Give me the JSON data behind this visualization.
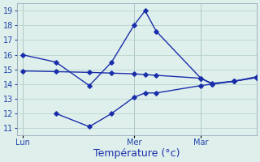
{
  "bg_color": "#dff0ec",
  "grid_color": "#b8d4ce",
  "line_color": "#1a2eaa",
  "xlabel": "Température (°c)",
  "xlabel_fontsize": 9,
  "ylim": [
    10.5,
    19.5
  ],
  "yticks": [
    11,
    12,
    13,
    14,
    15,
    16,
    17,
    18,
    19
  ],
  "day_labels": [
    "Lun",
    "Mer",
    "Mar"
  ],
  "day_positions": [
    0,
    10,
    16
  ],
  "xlim": [
    -0.5,
    21
  ],
  "vline_positions": [
    0,
    10,
    16
  ],
  "series_max_x": [
    0,
    3,
    6,
    8,
    10,
    11,
    12,
    16,
    17,
    19,
    21
  ],
  "series_max_y": [
    16.0,
    15.5,
    13.9,
    15.5,
    18.0,
    19.0,
    17.6,
    14.4,
    14.0,
    14.2,
    14.5
  ],
  "series_mid_x": [
    0,
    3,
    6,
    8,
    10,
    11,
    12,
    16,
    17,
    19,
    21
  ],
  "series_mid_y": [
    14.9,
    14.85,
    14.8,
    14.75,
    14.7,
    14.65,
    14.6,
    14.4,
    14.05,
    14.2,
    14.45
  ],
  "series_min_x": [
    3,
    6,
    8,
    10,
    11,
    12,
    16,
    17,
    19,
    21
  ],
  "series_min_y": [
    12.0,
    11.1,
    12.0,
    13.1,
    13.4,
    13.4,
    13.9,
    14.0,
    14.2,
    14.45
  ],
  "tick_fontsize": 7,
  "marker_size": 2.8,
  "line_width": 1.0
}
